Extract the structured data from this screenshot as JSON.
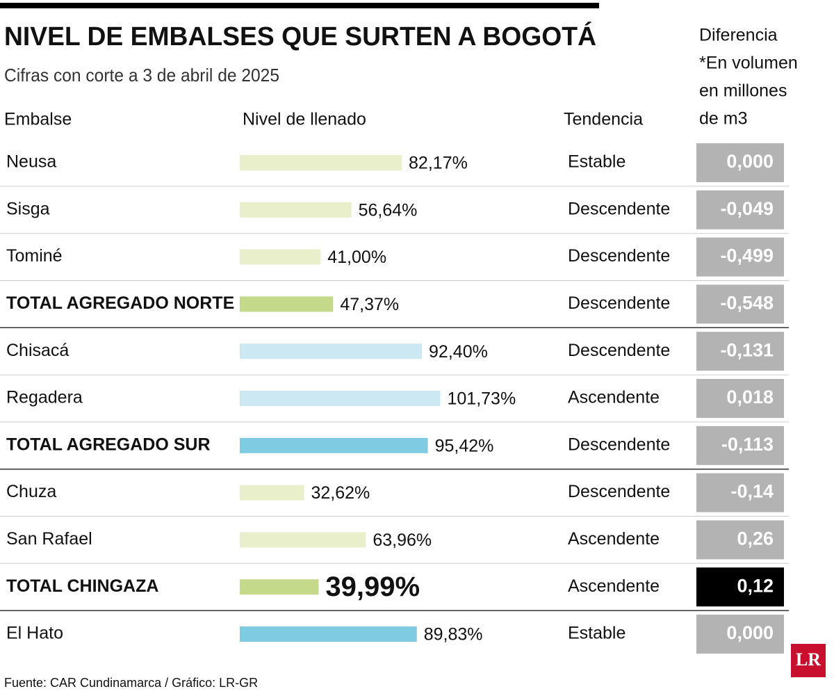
{
  "chart_data": {
    "type": "bar",
    "title": "NIVEL DE EMBALSES QUE SURTEN A BOGOTÁ",
    "subtitle": "Cifras con corte a 3 de abril de 2025",
    "headers": {
      "embalse": "Embalse",
      "nivel": "Nivel de llenado",
      "tendencia": "Tendencia",
      "diferencia": [
        "Diferencia",
        "*En volumen",
        "en millones",
        "de m3"
      ]
    },
    "categories": [
      "Neusa",
      "Sisga",
      "Tominé",
      "TOTAL AGREGADO NORTE",
      "Chisacá",
      "Regadera",
      "TOTAL AGREGADO SUR",
      "Chuza",
      "San Rafael",
      "TOTAL CHINGAZA",
      "El Hato"
    ],
    "values": [
      82.17,
      56.64,
      41.0,
      47.37,
      92.4,
      101.73,
      95.42,
      32.62,
      63.96,
      39.99,
      89.83
    ],
    "value_labels": [
      "82,17%",
      "56,64%",
      "41,00%",
      "47,37%",
      "92,40%",
      "101,73%",
      "95,42%",
      "32,62%",
      "63,96%",
      "39,99%",
      "89,83%"
    ],
    "colors": [
      "#e8efca",
      "#e8efca",
      "#e8efca",
      "#c5d98a",
      "#cce8f2",
      "#cce8f2",
      "#7ecbe2",
      "#e8efca",
      "#e8efca",
      "#c5d98a",
      "#7ecbe2"
    ],
    "emphasis": [
      false,
      false,
      false,
      true,
      false,
      false,
      true,
      false,
      false,
      true,
      false
    ],
    "trends": [
      "Estable",
      "Descendente",
      "Descendente",
      "Descendente",
      "Descendente",
      "Ascendente",
      "Descendente",
      "Descendente",
      "Ascendente",
      "Ascendente",
      "Estable"
    ],
    "differences": [
      0,
      -0.049,
      -0.499,
      -0.548,
      -0.131,
      0.018,
      -0.113,
      -0.14,
      0.26,
      0.12,
      0
    ],
    "difference_labels": [
      "0,000",
      "-0,049",
      "-0,499",
      "-0,548",
      "-0,131",
      "0,018",
      "-0,113",
      "-0,14",
      "0,26",
      "0,12",
      "0,000"
    ],
    "difference_colors": [
      "#b3b3b3",
      "#b3b3b3",
      "#b3b3b3",
      "#b3b3b3",
      "#b3b3b3",
      "#b3b3b3",
      "#b3b3b3",
      "#b3b3b3",
      "#b3b3b3",
      "#000000",
      "#b3b3b3"
    ],
    "source": "Fuente: CAR Cundinamarca / Gráfico: LR-GR",
    "logo": "LR"
  }
}
